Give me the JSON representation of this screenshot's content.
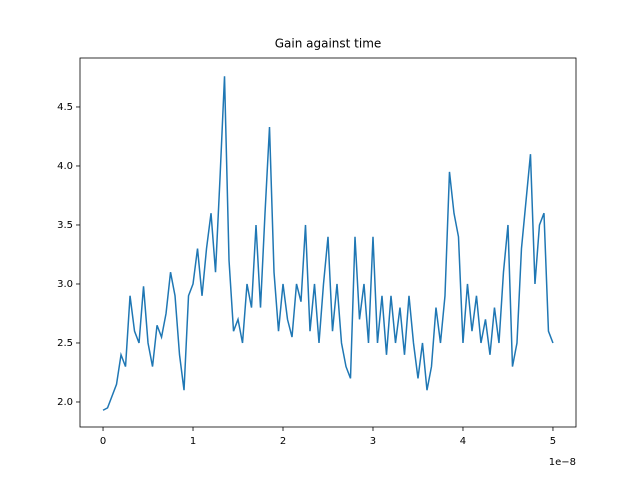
{
  "chart_data": {
    "type": "line",
    "title": "Gain against time",
    "x_offset_label": "1e−8",
    "x": [
      0,
      0.05,
      0.1,
      0.15,
      0.2,
      0.25,
      0.3,
      0.35,
      0.4,
      0.45,
      0.5,
      0.55,
      0.6,
      0.65,
      0.7,
      0.75,
      0.8,
      0.85,
      0.9,
      0.95,
      1,
      1.05,
      1.1,
      1.15,
      1.2,
      1.25,
      1.3,
      1.35,
      1.4,
      1.45,
      1.5,
      1.55,
      1.6,
      1.65,
      1.7,
      1.75,
      1.8,
      1.85,
      1.9,
      1.95,
      2,
      2.05,
      2.1,
      2.15,
      2.2,
      2.25,
      2.3,
      2.35,
      2.4,
      2.45,
      2.5,
      2.55,
      2.6,
      2.65,
      2.7,
      2.75,
      2.8,
      2.85,
      2.9,
      2.95,
      3,
      3.05,
      3.1,
      3.15,
      3.2,
      3.25,
      3.3,
      3.35,
      3.4,
      3.45,
      3.5,
      3.55,
      3.6,
      3.65,
      3.7,
      3.75,
      3.8,
      3.85,
      3.9,
      3.95,
      4,
      4.05,
      4.1,
      4.15,
      4.2,
      4.25,
      4.3,
      4.35,
      4.4,
      4.45,
      4.5,
      4.55,
      4.6,
      4.65,
      4.7,
      4.75,
      4.8,
      4.85,
      4.9,
      4.95,
      5
    ],
    "series": [
      {
        "color": "#1f77b4",
        "values": [
          1.93,
          1.95,
          2.05,
          2.15,
          2.4,
          2.3,
          2.9,
          2.6,
          2.5,
          2.98,
          2.5,
          2.3,
          2.65,
          2.55,
          2.75,
          3.1,
          2.9,
          2.4,
          2.1,
          2.9,
          3.0,
          3.3,
          2.9,
          3.3,
          3.6,
          3.1,
          3.9,
          4.76,
          3.2,
          2.6,
          2.7,
          2.5,
          3.0,
          2.8,
          3.5,
          2.8,
          3.6,
          4.33,
          3.1,
          2.6,
          3.0,
          2.7,
          2.55,
          3.0,
          2.85,
          3.5,
          2.6,
          3.0,
          2.5,
          3.0,
          3.4,
          2.6,
          3.0,
          2.5,
          2.3,
          2.2,
          3.4,
          2.7,
          3.0,
          2.5,
          3.4,
          2.5,
          2.9,
          2.4,
          2.9,
          2.5,
          2.8,
          2.4,
          2.9,
          2.5,
          2.2,
          2.5,
          2.1,
          2.3,
          2.8,
          2.5,
          2.9,
          3.95,
          3.6,
          3.4,
          2.5,
          3.0,
          2.6,
          2.9,
          2.5,
          2.7,
          2.4,
          2.8,
          2.5,
          3.1,
          3.5,
          2.3,
          2.5,
          3.3,
          3.7,
          4.1,
          3.0,
          3.5,
          3.6,
          2.6,
          2.5
        ]
      }
    ],
    "xlim": [
      -0.256,
      5.256
    ],
    "xticks": [
      0,
      1,
      2,
      3,
      4,
      5
    ],
    "ylim": [
      1.788,
      4.915
    ],
    "yticks": [
      {
        "value": 2,
        "label": "2.0"
      },
      2.5,
      {
        "value": 3,
        "label": "3.0"
      },
      3.5,
      {
        "value": 4,
        "label": "4.0"
      },
      4.5
    ]
  }
}
